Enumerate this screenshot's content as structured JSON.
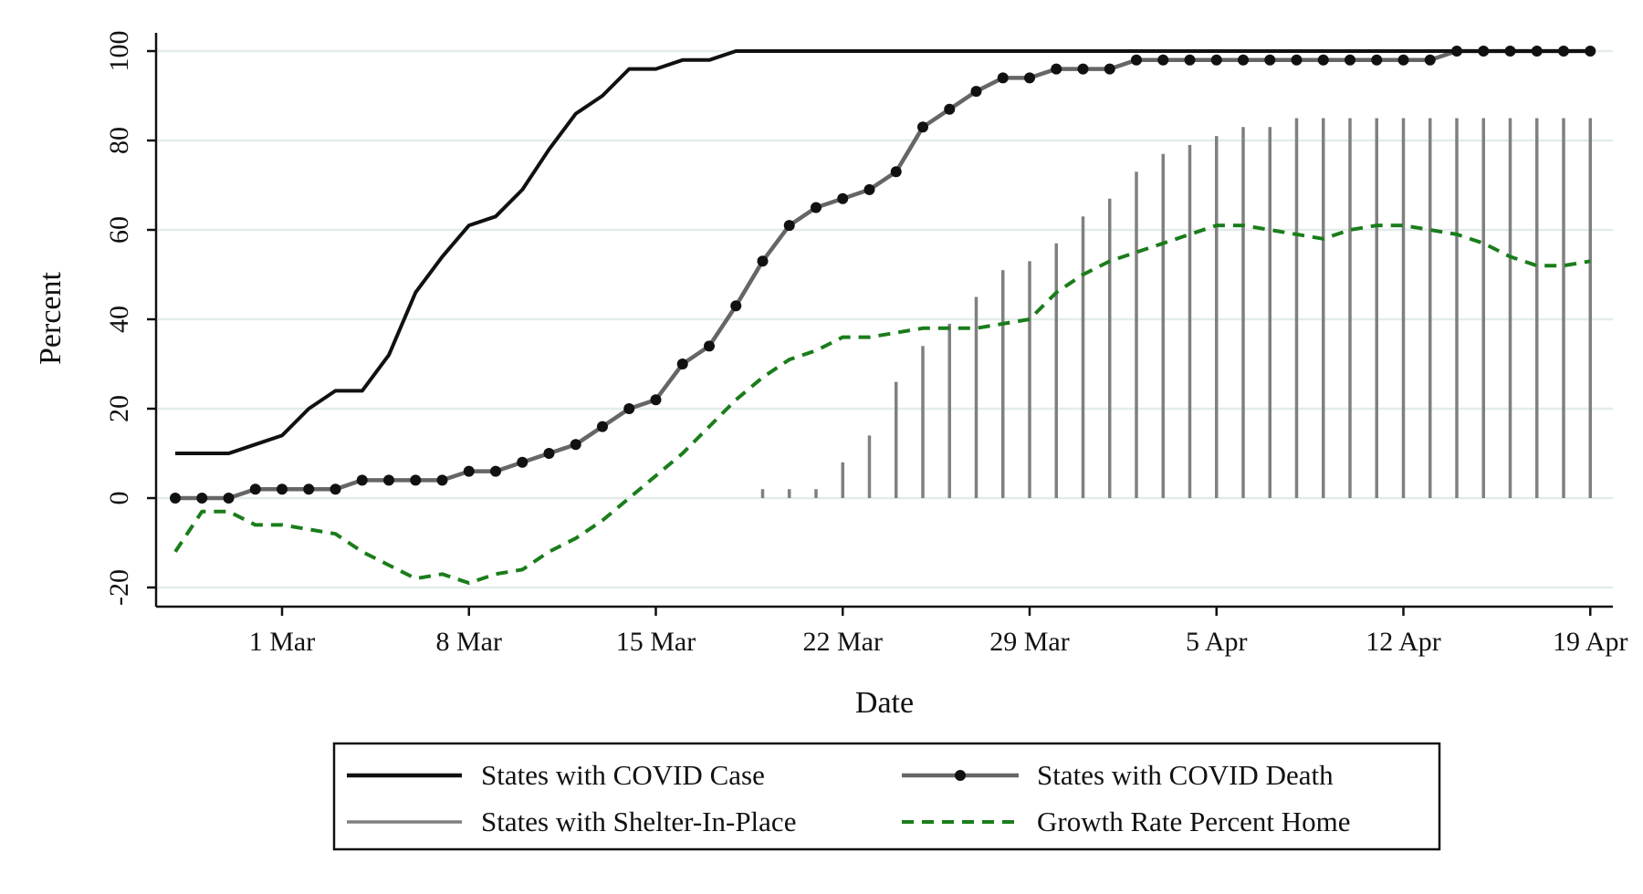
{
  "chart_data": {
    "type": "line",
    "xlabel": "Date",
    "ylabel": "Percent",
    "ylim": [
      -20,
      100
    ],
    "yticks": [
      -20,
      0,
      20,
      40,
      60,
      80,
      100
    ],
    "grid": true,
    "day_range": [
      -4,
      49
    ],
    "xticks": [
      {
        "day": 0,
        "label": "1 Mar"
      },
      {
        "day": 7,
        "label": "8 Mar"
      },
      {
        "day": 14,
        "label": "15 Mar"
      },
      {
        "day": 21,
        "label": "22 Mar"
      },
      {
        "day": 28,
        "label": "29 Mar"
      },
      {
        "day": 35,
        "label": "5 Apr"
      },
      {
        "day": 42,
        "label": "12 Apr"
      },
      {
        "day": 49,
        "label": "19 Apr"
      }
    ],
    "legend_position": "bottom",
    "colors": {
      "case": "#111111",
      "death": "#666666",
      "death_marker": "#111111",
      "shelter": "#808080",
      "growth": "#1a7d1a",
      "grid": "#e3ece9",
      "axis": "#111111"
    },
    "series": [
      {
        "key": "case",
        "name": "States with COVID Case",
        "style": "solid",
        "days": [
          -4,
          -3,
          -2,
          -1,
          0,
          1,
          2,
          3,
          4,
          5,
          6,
          7,
          8,
          9,
          10,
          11,
          12,
          13,
          14,
          15,
          16,
          17,
          18,
          19,
          20,
          21,
          22,
          23,
          24,
          25,
          26,
          27,
          28,
          29,
          30,
          31,
          32,
          33,
          34,
          35,
          36,
          37,
          38,
          39,
          40,
          41,
          42,
          43,
          44,
          45,
          46,
          47,
          48,
          49
        ],
        "values": [
          10,
          10,
          10,
          12,
          14,
          20,
          24,
          24,
          32,
          46,
          54,
          61,
          63,
          69,
          78,
          86,
          90,
          96,
          96,
          98,
          98,
          100,
          100,
          100,
          100,
          100,
          100,
          100,
          100,
          100,
          100,
          100,
          100,
          100,
          100,
          100,
          100,
          100,
          100,
          100,
          100,
          100,
          100,
          100,
          100,
          100,
          100,
          100,
          100,
          100,
          100,
          100,
          100,
          100
        ]
      },
      {
        "key": "death",
        "name": "States with COVID Death",
        "style": "solid-markers",
        "days": [
          -4,
          -3,
          -2,
          -1,
          0,
          1,
          2,
          3,
          4,
          5,
          6,
          7,
          8,
          9,
          10,
          11,
          12,
          13,
          14,
          15,
          16,
          17,
          18,
          19,
          20,
          21,
          22,
          23,
          24,
          25,
          26,
          27,
          28,
          29,
          30,
          31,
          32,
          33,
          34,
          35,
          36,
          37,
          38,
          39,
          40,
          41,
          42,
          43,
          44,
          45,
          46,
          47,
          48,
          49
        ],
        "values": [
          0,
          0,
          0,
          2,
          2,
          2,
          2,
          4,
          4,
          4,
          4,
          6,
          6,
          8,
          10,
          12,
          16,
          20,
          22,
          30,
          34,
          43,
          53,
          61,
          65,
          67,
          69,
          73,
          83,
          87,
          91,
          94,
          94,
          96,
          96,
          96,
          98,
          98,
          98,
          98,
          98,
          98,
          98,
          98,
          98,
          98,
          98,
          98,
          100,
          100,
          100,
          100,
          100,
          100
        ]
      },
      {
        "key": "shelter",
        "name": "States with Shelter-In-Place",
        "style": "spikes",
        "days": [
          18,
          19,
          20,
          21,
          22,
          23,
          24,
          25,
          26,
          27,
          28,
          29,
          30,
          31,
          32,
          33,
          34,
          35,
          36,
          37,
          38,
          39,
          40,
          41,
          42,
          43,
          44,
          45,
          46,
          47,
          48,
          49
        ],
        "values": [
          2,
          2,
          2,
          8,
          14,
          26,
          34,
          39,
          45,
          51,
          53,
          57,
          63,
          67,
          73,
          77,
          79,
          81,
          83,
          83,
          85,
          85,
          85,
          85,
          85,
          85,
          85,
          85,
          85,
          85,
          85,
          85
        ]
      },
      {
        "key": "growth",
        "name": "Growth Rate Percent Home",
        "style": "dashed",
        "days": [
          -4,
          -3,
          -2,
          -1,
          0,
          1,
          2,
          3,
          4,
          5,
          6,
          7,
          8,
          9,
          10,
          11,
          12,
          13,
          14,
          15,
          16,
          17,
          18,
          19,
          20,
          21,
          22,
          23,
          24,
          25,
          26,
          27,
          28,
          29,
          30,
          31,
          32,
          33,
          34,
          35,
          36,
          37,
          38,
          39,
          40,
          41,
          42,
          43,
          44,
          45,
          46,
          47,
          48,
          49
        ],
        "values": [
          -12,
          -3,
          -3,
          -6,
          -6,
          -7,
          -8,
          -12,
          -15,
          -18,
          -17,
          -19,
          -17,
          -16,
          -12,
          -9,
          -5,
          0,
          5,
          10,
          16,
          22,
          27,
          31,
          33,
          36,
          36,
          37,
          38,
          38,
          38,
          39,
          40,
          46,
          50,
          53,
          55,
          57,
          59,
          61,
          61,
          60,
          59,
          58,
          60,
          61,
          61,
          60,
          59,
          57,
          54,
          52,
          52,
          53
        ]
      }
    ]
  }
}
